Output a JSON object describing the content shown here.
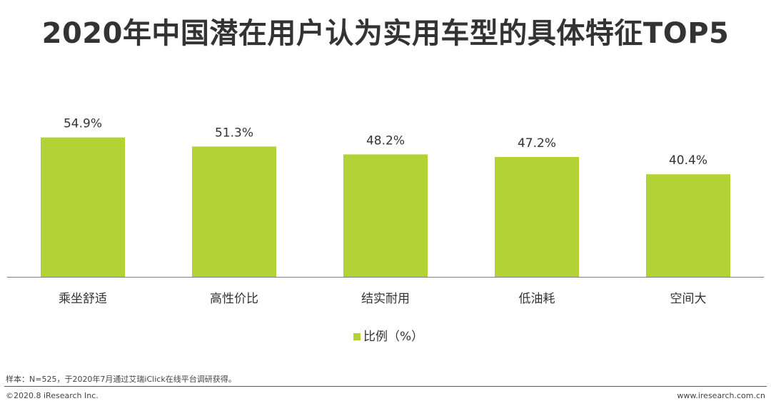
{
  "title": "2020年中国潜在用户认为实用车型的具体特征TOP5",
  "chart_data": {
    "type": "bar",
    "categories": [
      "乘坐舒适",
      "高性价比",
      "结实耐用",
      "低油耗",
      "空间大"
    ],
    "series": [
      {
        "name": "比例（%）",
        "values": [
          54.9,
          51.3,
          48.2,
          47.2,
          40.4
        ],
        "labels": [
          "54.9%",
          "51.3%",
          "48.2%",
          "47.2%",
          "40.4%"
        ],
        "color": "#B3D236"
      }
    ],
    "ylim": [
      0,
      60
    ],
    "grid": false,
    "legend": "bottom",
    "axis_color": "#7F7F7F"
  },
  "footnote": "样本：N=525，于2020年7月通过艾瑞iClick在线平台调研获得。",
  "copyright": "©2020.8 iResearch Inc.",
  "website": "www.iresearch.com.cn"
}
